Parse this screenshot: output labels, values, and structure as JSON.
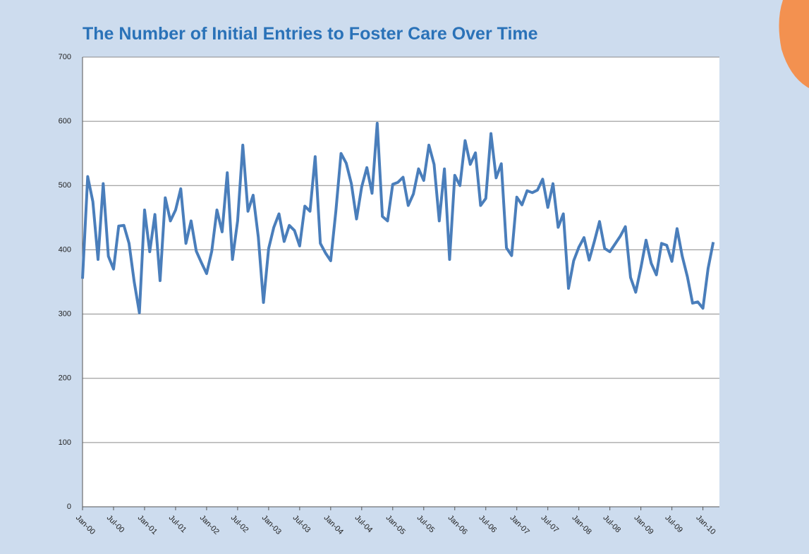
{
  "chart_data": {
    "type": "line",
    "title": "The Number of Initial Entries to Foster Care Over Time",
    "categories": [
      "Jan-00",
      null,
      null,
      null,
      null,
      null,
      "Jul-00",
      null,
      null,
      null,
      null,
      null,
      "Jan-01",
      null,
      null,
      null,
      null,
      null,
      "Jul-01",
      null,
      null,
      null,
      null,
      null,
      "Jan-02",
      null,
      null,
      null,
      null,
      null,
      "Jul-02",
      null,
      null,
      null,
      null,
      null,
      "Jan-03",
      null,
      null,
      null,
      null,
      null,
      "Jul-03",
      null,
      null,
      null,
      null,
      null,
      "Jan-04",
      null,
      null,
      null,
      null,
      null,
      "Jul-04",
      null,
      null,
      null,
      null,
      null,
      "Jan-05",
      null,
      null,
      null,
      null,
      null,
      "Jul-05",
      null,
      null,
      null,
      null,
      null,
      "Jan-06",
      null,
      null,
      null,
      null,
      null,
      "Jul-06",
      null,
      null,
      null,
      null,
      null,
      "Jan-07",
      null,
      null,
      null,
      null,
      null,
      "Jul-07",
      null,
      null,
      null,
      null,
      null,
      "Jan-08",
      null,
      null,
      null,
      null,
      null,
      "Jul-08",
      null,
      null,
      null,
      null,
      null,
      "Jan-09",
      null,
      null,
      null,
      null,
      null,
      "Jul-09",
      null,
      null,
      null,
      null,
      null,
      "Jan-10",
      null,
      null
    ],
    "values": [
      355,
      514,
      475,
      385,
      503,
      390,
      370,
      437,
      438,
      410,
      350,
      302,
      462,
      397,
      455,
      352,
      481,
      445,
      462,
      495,
      410,
      445,
      398,
      380,
      363,
      398,
      462,
      428,
      520,
      385,
      445,
      563,
      460,
      485,
      420,
      318,
      402,
      435,
      456,
      413,
      438,
      430,
      406,
      468,
      460,
      545,
      410,
      395,
      383,
      460,
      550,
      535,
      503,
      448,
      498,
      528,
      488,
      597,
      452,
      445,
      502,
      505,
      513,
      469,
      487,
      526,
      508,
      563,
      533,
      445,
      526,
      385,
      516,
      500,
      570,
      533,
      551,
      469,
      480,
      581,
      512,
      534,
      403,
      391,
      482,
      470,
      492,
      489,
      493,
      510,
      466,
      503,
      435,
      456,
      340,
      383,
      404,
      419,
      384,
      413,
      444,
      402,
      397,
      409,
      421,
      436,
      357,
      334,
      372,
      415,
      379,
      361,
      410,
      407,
      382,
      433,
      390,
      358,
      317,
      319,
      309,
      371,
      412
    ],
    "color": "#4a7ebb",
    "ylim": [
      0,
      700
    ],
    "yticks": [
      0,
      100,
      200,
      300,
      400,
      500,
      600,
      700
    ],
    "grid": true
  }
}
